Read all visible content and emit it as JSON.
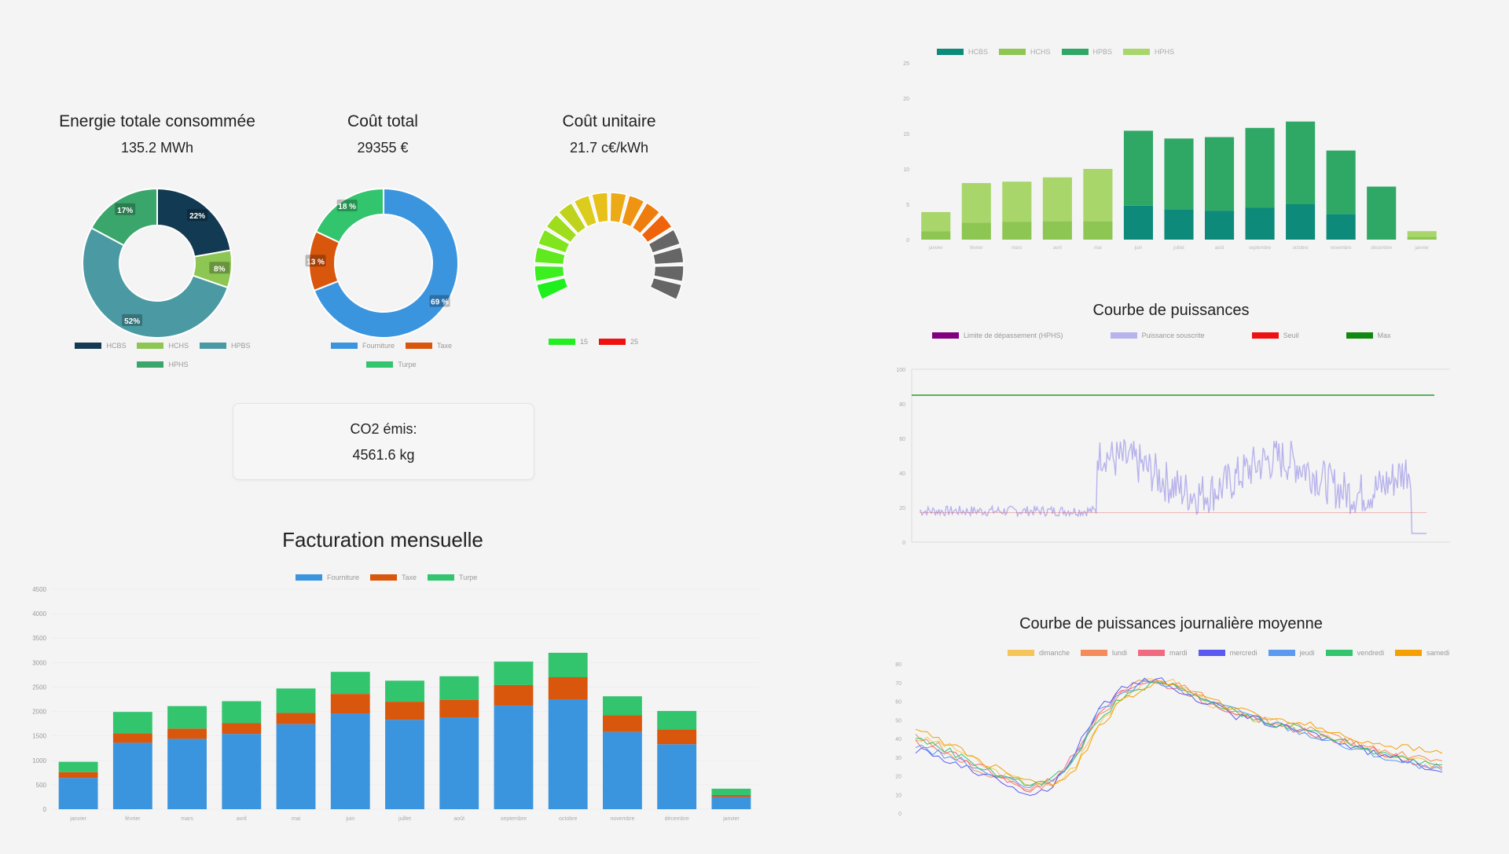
{
  "kpis": {
    "energy": {
      "title": "Energie totale consommée",
      "value": "135.2 MWh"
    },
    "cost": {
      "title": "Coût total",
      "value": "29355 €"
    },
    "unit_cost": {
      "title": "Coût unitaire",
      "value": "21.7 c€/kWh"
    }
  },
  "co2": {
    "label": "CO2 émis:",
    "value": "4561.6 kg"
  },
  "energy_donut": {
    "slices": [
      {
        "label": "22%",
        "value": 22,
        "color": "#123a52"
      },
      {
        "label": "8%",
        "value": 8,
        "color": "#8dc653"
      },
      {
        "label": "52%",
        "value": 52,
        "color": "#4b9aa3"
      },
      {
        "label": "17%",
        "value": 17,
        "color": "#3aa66b"
      }
    ],
    "legend": [
      {
        "name": "HCBS",
        "color": "#123a52"
      },
      {
        "name": "HCHS",
        "color": "#8dc653"
      },
      {
        "name": "HPBS",
        "color": "#4b9aa3"
      },
      {
        "name": "HPHS",
        "color": "#3aa66b"
      }
    ]
  },
  "cost_donut": {
    "slices": [
      {
        "label": "69 %",
        "value": 69,
        "color": "#3b95de"
      },
      {
        "label": "13 %",
        "value": 13,
        "color": "#d9560d"
      },
      {
        "label": "18 %",
        "value": 18,
        "color": "#33c46e"
      }
    ],
    "legend": [
      {
        "name": "Fourniture",
        "color": "#3b95de"
      },
      {
        "name": "Taxe",
        "color": "#d9560d"
      },
      {
        "name": "Turpe",
        "color": "#33c46e"
      }
    ]
  },
  "gauge": {
    "legend": [
      {
        "name": "15",
        "color": "#22ee22"
      },
      {
        "name": "25",
        "color": "#ee1111"
      }
    ],
    "value": 21.7
  },
  "billing": {
    "title": "Facturation mensuelle",
    "legend": [
      {
        "name": "Fourniture",
        "color": "#3b95de"
      },
      {
        "name": "Taxe",
        "color": "#d9560d"
      },
      {
        "name": "Turpe",
        "color": "#33c46e"
      }
    ]
  },
  "power_curve": {
    "title": "Courbe de puissances",
    "legend": [
      {
        "name": "Limite de dépassement (HPHS)",
        "color": "#800080"
      },
      {
        "name": "Puissance souscrite",
        "color": "#b7b3ec"
      },
      {
        "name": "Seuil",
        "color": "#ee1111"
      },
      {
        "name": "Max",
        "color": "#118811"
      }
    ]
  },
  "daily_curve": {
    "title": "Courbe de puissances journalière moyenne",
    "legend": [
      {
        "name": "dimanche",
        "color": "#f5c55a"
      },
      {
        "name": "lundi",
        "color": "#f58a5a"
      },
      {
        "name": "mardi",
        "color": "#f06a80"
      },
      {
        "name": "mercredi",
        "color": "#5a5af0"
      },
      {
        "name": "jeudi",
        "color": "#5a9af0"
      },
      {
        "name": "vendredi",
        "color": "#33c46e"
      },
      {
        "name": "samedi",
        "color": "#f5a000"
      }
    ]
  },
  "chart_data": [
    {
      "type": "pie",
      "title": "Energie totale consommée",
      "categories": [
        "HCBS",
        "HCHS",
        "HPBS",
        "HPHS"
      ],
      "values": [
        22,
        8,
        52,
        17
      ]
    },
    {
      "type": "pie",
      "title": "Coût total",
      "categories": [
        "Fourniture",
        "Taxe",
        "Turpe"
      ],
      "values": [
        69,
        13,
        18
      ]
    },
    {
      "type": "bar",
      "title": "Facturation mensuelle",
      "categories": [
        "janvier",
        "février",
        "mars",
        "avril",
        "mai",
        "juin",
        "juillet",
        "août",
        "septembre",
        "octobre",
        "novembre",
        "décembre",
        "janvier"
      ],
      "series": [
        {
          "name": "Fourniture",
          "values": [
            640,
            1360,
            1440,
            1540,
            1740,
            1960,
            1830,
            1880,
            2120,
            2250,
            1580,
            1330,
            250
          ]
        },
        {
          "name": "Taxe",
          "values": [
            120,
            190,
            210,
            220,
            230,
            400,
            370,
            360,
            420,
            450,
            340,
            300,
            40
          ]
        },
        {
          "name": "Turpe",
          "values": [
            210,
            440,
            460,
            450,
            500,
            450,
            430,
            480,
            480,
            500,
            390,
            380,
            130
          ]
        }
      ],
      "ylim": [
        0,
        4500
      ]
    },
    {
      "type": "bar",
      "title": "",
      "categories": [
        "janvier",
        "février",
        "mars",
        "avril",
        "mai",
        "juin",
        "juillet",
        "août",
        "septembre",
        "octobre",
        "novembre",
        "décembre",
        "janvier"
      ],
      "series": [
        {
          "name": "HCBS",
          "values": [
            0,
            0,
            0,
            0,
            0,
            4.8,
            4.3,
            4.1,
            4.5,
            5.0,
            3.6,
            0,
            0
          ]
        },
        {
          "name": "HCHS",
          "values": [
            1.2,
            2.4,
            2.5,
            2.6,
            2.6,
            0,
            0,
            0,
            0,
            0,
            0,
            0,
            0.4
          ]
        },
        {
          "name": "HPBS",
          "values": [
            0,
            0,
            0,
            0,
            0,
            10.6,
            10.0,
            10.4,
            11.3,
            11.7,
            9.0,
            7.5,
            0
          ]
        },
        {
          "name": "HPHS",
          "values": [
            2.7,
            5.6,
            5.7,
            6.2,
            7.4,
            0,
            0,
            0,
            0,
            0,
            0,
            0,
            0.8
          ]
        }
      ],
      "ylim": [
        0,
        25
      ]
    },
    {
      "type": "line",
      "title": "Courbe de puissances",
      "ylim": [
        0,
        100
      ],
      "series": [
        {
          "name": "Max",
          "values": [
            85
          ]
        }
      ]
    },
    {
      "type": "line",
      "title": "Courbe de puissances journalière moyenne",
      "series": [
        {
          "name": "dimanche",
          "values": [
            40,
            38,
            33,
            25,
            20,
            16,
            14,
            26,
            48,
            62,
            70,
            72,
            65,
            58,
            52,
            50,
            48,
            44,
            40,
            36,
            33,
            30,
            28,
            25
          ]
        },
        {
          "name": "lundi",
          "values": [
            42,
            36,
            28,
            22,
            18,
            13,
            16,
            30,
            52,
            64,
            72,
            70,
            66,
            60,
            55,
            50,
            48,
            46,
            42,
            38,
            35,
            32,
            30,
            28
          ]
        },
        {
          "name": "mardi",
          "values": [
            38,
            34,
            30,
            24,
            17,
            12,
            18,
            32,
            55,
            66,
            70,
            68,
            64,
            58,
            54,
            52,
            46,
            44,
            40,
            38,
            34,
            30,
            26,
            24
          ]
        },
        {
          "name": "mercredi",
          "values": [
            34,
            30,
            26,
            20,
            16,
            10,
            14,
            34,
            56,
            66,
            72,
            70,
            62,
            58,
            52,
            50,
            46,
            44,
            40,
            36,
            32,
            30,
            26,
            22
          ]
        },
        {
          "name": "jeudi",
          "values": [
            36,
            32,
            28,
            22,
            18,
            14,
            17,
            31,
            54,
            64,
            70,
            69,
            64,
            60,
            55,
            51,
            47,
            43,
            39,
            35,
            32,
            28,
            25,
            23
          ]
        },
        {
          "name": "vendredi",
          "values": [
            40,
            36,
            30,
            24,
            19,
            15,
            18,
            30,
            50,
            62,
            68,
            70,
            63,
            59,
            54,
            50,
            47,
            45,
            41,
            37,
            33,
            31,
            28,
            26
          ]
        },
        {
          "name": "samedi",
          "values": [
            44,
            40,
            34,
            27,
            22,
            18,
            16,
            24,
            46,
            60,
            68,
            70,
            66,
            60,
            56,
            52,
            50,
            48,
            44,
            40,
            38,
            36,
            34,
            32
          ]
        }
      ]
    }
  ]
}
